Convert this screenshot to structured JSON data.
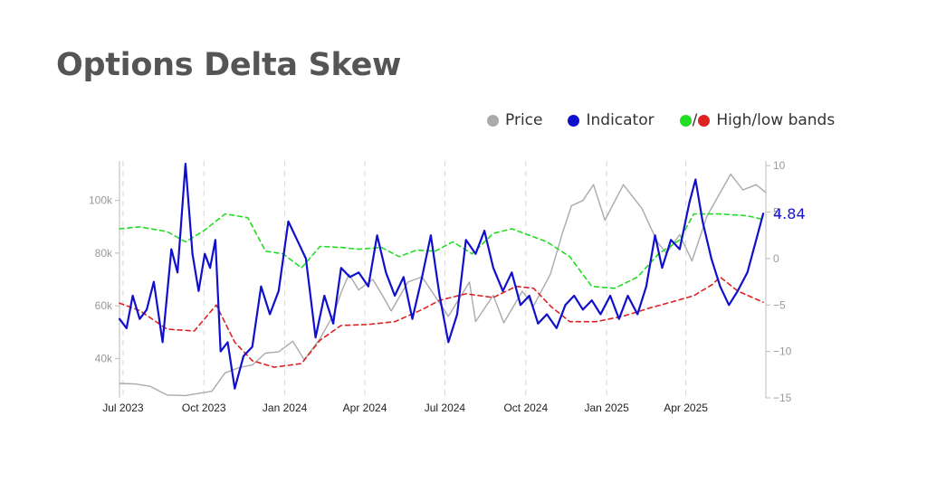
{
  "page": {
    "title": "Options Delta Skew"
  },
  "legend": {
    "price": "Price",
    "indicator": "Indicator",
    "slash": "/",
    "bands": "High/low bands"
  },
  "colors": {
    "price": "#aaaaaa",
    "indicator": "#1010cc",
    "high_band": "#22dd22",
    "low_band": "#dd2222",
    "title": "#555555"
  },
  "chart_data": {
    "type": "line",
    "title": "Options Delta Skew",
    "x_range": [
      "2023-06-27",
      "2025-07-01"
    ],
    "x_ticks": [
      {
        "date": "2023-07-01",
        "label": "Jul 2023"
      },
      {
        "date": "2023-10-01",
        "label": "Oct 2023"
      },
      {
        "date": "2024-01-01",
        "label": "Jan 2024"
      },
      {
        "date": "2024-04-01",
        "label": "Apr 2024"
      },
      {
        "date": "2024-07-01",
        "label": "Jul 2024"
      },
      {
        "date": "2024-10-01",
        "label": "Oct 2024"
      },
      {
        "date": "2025-01-01",
        "label": "Jan 2025"
      },
      {
        "date": "2025-04-01",
        "label": "Apr 2025"
      }
    ],
    "y_left": {
      "range": [
        25000,
        115000
      ],
      "ticks": [
        40000,
        60000,
        80000,
        100000
      ],
      "tick_labels": [
        "40k",
        "60k",
        "80k",
        "100k"
      ]
    },
    "y_right": {
      "range": [
        -15,
        10.5
      ],
      "ticks": [
        10,
        5,
        0,
        -5,
        -10,
        -15
      ],
      "tick_labels": [
        "10",
        "5",
        "0",
        "−5",
        "−10",
        "−15"
      ]
    },
    "grid": "vertical dashed",
    "last_value_label": "4.84",
    "series": [
      {
        "name": "Price",
        "axis": "left",
        "points": [
          [
            "2023-06-27",
            30500
          ],
          [
            "2023-07-15",
            30300
          ],
          [
            "2023-08-01",
            29400
          ],
          [
            "2023-08-20",
            26100
          ],
          [
            "2023-09-10",
            25900
          ],
          [
            "2023-09-30",
            27000
          ],
          [
            "2023-10-10",
            27500
          ],
          [
            "2023-10-25",
            34500
          ],
          [
            "2023-11-10",
            36500
          ],
          [
            "2023-11-25",
            37500
          ],
          [
            "2023-12-10",
            42000
          ],
          [
            "2023-12-25",
            42500
          ],
          [
            "2024-01-10",
            46500
          ],
          [
            "2024-01-23",
            39500
          ],
          [
            "2024-02-10",
            47500
          ],
          [
            "2024-02-26",
            57000
          ],
          [
            "2024-03-05",
            65000
          ],
          [
            "2024-03-14",
            72000
          ],
          [
            "2024-03-25",
            66000
          ],
          [
            "2024-04-10",
            70000
          ],
          [
            "2024-04-20",
            64500
          ],
          [
            "2024-05-01",
            58000
          ],
          [
            "2024-05-20",
            69000
          ],
          [
            "2024-06-05",
            71000
          ],
          [
            "2024-06-25",
            61000
          ],
          [
            "2024-07-05",
            56000
          ],
          [
            "2024-07-29",
            69000
          ],
          [
            "2024-08-05",
            54000
          ],
          [
            "2024-08-25",
            64000
          ],
          [
            "2024-09-06",
            53500
          ],
          [
            "2024-09-27",
            65500
          ],
          [
            "2024-10-10",
            60000
          ],
          [
            "2024-10-29",
            72000
          ],
          [
            "2024-11-12",
            88000
          ],
          [
            "2024-11-22",
            98000
          ],
          [
            "2024-12-05",
            100000
          ],
          [
            "2024-12-17",
            106000
          ],
          [
            "2024-12-30",
            92500
          ],
          [
            "2025-01-20",
            106000
          ],
          [
            "2025-02-10",
            97000
          ],
          [
            "2025-02-28",
            84000
          ],
          [
            "2025-03-10",
            80000
          ],
          [
            "2025-03-25",
            87000
          ],
          [
            "2025-04-08",
            77000
          ],
          [
            "2025-04-25",
            94000
          ],
          [
            "2025-05-22",
            110000
          ],
          [
            "2025-06-05",
            104000
          ],
          [
            "2025-06-20",
            106000
          ],
          [
            "2025-07-01",
            103000
          ]
        ]
      },
      {
        "name": "Indicator",
        "axis": "right",
        "points": [
          [
            "2023-06-27",
            -6.5
          ],
          [
            "2023-07-05",
            -7.5
          ],
          [
            "2023-07-12",
            -4.0
          ],
          [
            "2023-07-20",
            -6.5
          ],
          [
            "2023-07-28",
            -5.5
          ],
          [
            "2023-08-05",
            -2.5
          ],
          [
            "2023-08-15",
            -9.0
          ],
          [
            "2023-08-25",
            1.0
          ],
          [
            "2023-09-01",
            -1.5
          ],
          [
            "2023-09-10",
            10.2
          ],
          [
            "2023-09-18",
            0.5
          ],
          [
            "2023-09-25",
            -3.5
          ],
          [
            "2023-10-02",
            0.5
          ],
          [
            "2023-10-08",
            -1.0
          ],
          [
            "2023-10-14",
            2.0
          ],
          [
            "2023-10-20",
            -10.0
          ],
          [
            "2023-10-28",
            -9.0
          ],
          [
            "2023-11-05",
            -14.0
          ],
          [
            "2023-11-15",
            -10.5
          ],
          [
            "2023-11-25",
            -9.5
          ],
          [
            "2023-12-05",
            -3.0
          ],
          [
            "2023-12-15",
            -6.0
          ],
          [
            "2023-12-25",
            -3.5
          ],
          [
            "2024-01-05",
            4.0
          ],
          [
            "2024-01-15",
            2.0
          ],
          [
            "2024-01-25",
            0.0
          ],
          [
            "2024-02-05",
            -8.5
          ],
          [
            "2024-02-15",
            -4.0
          ],
          [
            "2024-02-25",
            -7.0
          ],
          [
            "2024-03-05",
            -1.0
          ],
          [
            "2024-03-15",
            -2.0
          ],
          [
            "2024-03-25",
            -1.5
          ],
          [
            "2024-04-05",
            -3.0
          ],
          [
            "2024-04-15",
            2.5
          ],
          [
            "2024-04-25",
            -1.5
          ],
          [
            "2024-05-05",
            -4.0
          ],
          [
            "2024-05-15",
            -2.0
          ],
          [
            "2024-05-25",
            -6.5
          ],
          [
            "2024-06-05",
            -2.0
          ],
          [
            "2024-06-15",
            2.5
          ],
          [
            "2024-06-25",
            -4.0
          ],
          [
            "2024-07-05",
            -9.0
          ],
          [
            "2024-07-15",
            -6.0
          ],
          [
            "2024-07-25",
            2.0
          ],
          [
            "2024-08-05",
            0.5
          ],
          [
            "2024-08-15",
            3.0
          ],
          [
            "2024-08-25",
            -1.0
          ],
          [
            "2024-09-05",
            -3.5
          ],
          [
            "2024-09-15",
            -1.5
          ],
          [
            "2024-09-25",
            -5.0
          ],
          [
            "2024-10-05",
            -4.0
          ],
          [
            "2024-10-15",
            -7.0
          ],
          [
            "2024-10-25",
            -6.0
          ],
          [
            "2024-11-05",
            -7.5
          ],
          [
            "2024-11-15",
            -5.0
          ],
          [
            "2024-11-25",
            -4.0
          ],
          [
            "2024-12-05",
            -5.5
          ],
          [
            "2024-12-15",
            -4.5
          ],
          [
            "2024-12-25",
            -6.0
          ],
          [
            "2025-01-05",
            -4.0
          ],
          [
            "2025-01-15",
            -6.5
          ],
          [
            "2025-01-25",
            -4.0
          ],
          [
            "2025-02-05",
            -6.0
          ],
          [
            "2025-02-15",
            -3.0
          ],
          [
            "2025-02-25",
            2.5
          ],
          [
            "2025-03-05",
            -1.0
          ],
          [
            "2025-03-15",
            2.0
          ],
          [
            "2025-03-25",
            1.0
          ],
          [
            "2025-04-05",
            6.0
          ],
          [
            "2025-04-12",
            8.5
          ],
          [
            "2025-04-20",
            4.0
          ],
          [
            "2025-04-30",
            0.0
          ],
          [
            "2025-05-10",
            -3.0
          ],
          [
            "2025-05-20",
            -5.0
          ],
          [
            "2025-05-30",
            -3.5
          ],
          [
            "2025-06-10",
            -1.5
          ],
          [
            "2025-06-20",
            2.0
          ],
          [
            "2025-06-28",
            4.84
          ]
        ]
      },
      {
        "name": "High band",
        "axis": "right",
        "points": [
          [
            "2023-06-27",
            3.2
          ],
          [
            "2023-07-20",
            3.4
          ],
          [
            "2023-08-20",
            2.9
          ],
          [
            "2023-09-10",
            1.8
          ],
          [
            "2023-10-01",
            3.0
          ],
          [
            "2023-10-25",
            4.8
          ],
          [
            "2023-11-20",
            4.4
          ],
          [
            "2023-12-10",
            0.8
          ],
          [
            "2023-12-30",
            0.5
          ],
          [
            "2024-01-20",
            -1.0
          ],
          [
            "2024-02-10",
            1.3
          ],
          [
            "2024-03-05",
            1.2
          ],
          [
            "2024-03-25",
            1.0
          ],
          [
            "2024-04-20",
            1.2
          ],
          [
            "2024-05-10",
            0.2
          ],
          [
            "2024-05-30",
            0.9
          ],
          [
            "2024-06-20",
            0.8
          ],
          [
            "2024-07-10",
            1.8
          ],
          [
            "2024-08-01",
            0.5
          ],
          [
            "2024-08-25",
            2.7
          ],
          [
            "2024-09-15",
            3.2
          ],
          [
            "2024-10-05",
            2.5
          ],
          [
            "2024-10-25",
            1.8
          ],
          [
            "2024-11-20",
            0.2
          ],
          [
            "2024-12-15",
            -3.0
          ],
          [
            "2025-01-10",
            -3.2
          ],
          [
            "2025-02-05",
            -2.0
          ],
          [
            "2025-03-01",
            0.5
          ],
          [
            "2025-03-25",
            2.0
          ],
          [
            "2025-04-10",
            4.8
          ],
          [
            "2025-05-10",
            4.8
          ],
          [
            "2025-06-10",
            4.6
          ],
          [
            "2025-06-28",
            4.2
          ]
        ]
      },
      {
        "name": "Low band",
        "axis": "right",
        "points": [
          [
            "2023-06-27",
            -4.8
          ],
          [
            "2023-07-20",
            -5.6
          ],
          [
            "2023-08-20",
            -7.6
          ],
          [
            "2023-09-20",
            -7.8
          ],
          [
            "2023-10-15",
            -5.0
          ],
          [
            "2023-11-05",
            -9.0
          ],
          [
            "2023-11-25",
            -11.0
          ],
          [
            "2023-12-20",
            -11.7
          ],
          [
            "2024-01-20",
            -11.3
          ],
          [
            "2024-02-10",
            -8.8
          ],
          [
            "2024-03-05",
            -7.2
          ],
          [
            "2024-04-05",
            -7.1
          ],
          [
            "2024-05-05",
            -6.8
          ],
          [
            "2024-06-05",
            -5.5
          ],
          [
            "2024-06-25",
            -4.5
          ],
          [
            "2024-07-25",
            -3.8
          ],
          [
            "2024-08-25",
            -4.2
          ],
          [
            "2024-09-20",
            -3.0
          ],
          [
            "2024-10-10",
            -3.2
          ],
          [
            "2024-10-30",
            -5.2
          ],
          [
            "2024-11-20",
            -6.8
          ],
          [
            "2024-12-20",
            -6.8
          ],
          [
            "2025-01-20",
            -6.2
          ],
          [
            "2025-02-20",
            -5.3
          ],
          [
            "2025-03-15",
            -4.7
          ],
          [
            "2025-04-10",
            -4.0
          ],
          [
            "2025-05-01",
            -2.8
          ],
          [
            "2025-05-10",
            -2.0
          ],
          [
            "2025-05-30",
            -3.5
          ],
          [
            "2025-06-28",
            -4.7
          ]
        ]
      }
    ]
  }
}
